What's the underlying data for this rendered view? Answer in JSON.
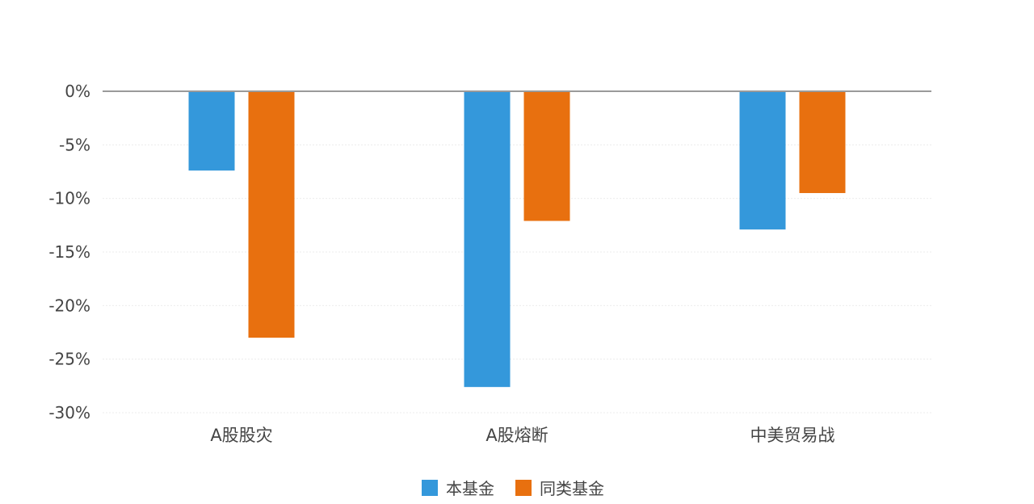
{
  "chart_data": {
    "type": "bar",
    "title": "",
    "xlabel": "",
    "ylabel": "",
    "categories": [
      "A股股灾",
      "A股熔断",
      "中美贸易战"
    ],
    "series": [
      {
        "name": "本基金",
        "color": "#3498db",
        "values": [
          -7.4,
          -27.6,
          -12.9
        ]
      },
      {
        "name": "同类基金",
        "color": "#e8700f",
        "values": [
          -23.0,
          -12.1,
          -9.5
        ]
      }
    ],
    "ylim": [
      -30,
      0
    ],
    "yticks": [
      0,
      -5,
      -10,
      -15,
      -20,
      -25,
      -30
    ],
    "ytick_labels": [
      "0%",
      "-5%",
      "-10%",
      "-15%",
      "-20%",
      "-25%",
      "-30%"
    ],
    "grid": true,
    "legend_position": "bottom"
  }
}
